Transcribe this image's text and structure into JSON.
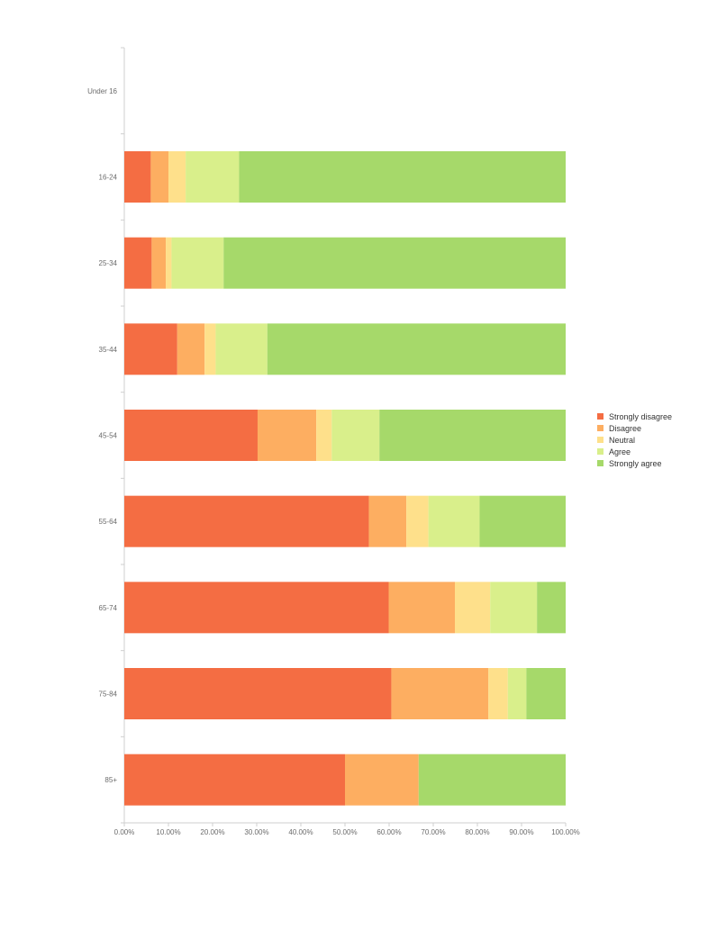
{
  "chart_data": {
    "type": "bar",
    "orientation": "horizontal",
    "stacked": true,
    "categories": [
      "Under 16",
      "16-24",
      "25-34",
      "35-44",
      "45-54",
      "55-64",
      "65-74",
      "75-84",
      "85+"
    ],
    "series": [
      {
        "name": "Strongly disagree",
        "color": "#f46d43",
        "values": [
          0,
          6,
          6.2,
          12,
          30.2,
          55.4,
          59.9,
          60.5,
          50
        ]
      },
      {
        "name": "Disagree",
        "color": "#fdae61",
        "values": [
          0,
          4,
          3.2,
          6.2,
          13.3,
          8.5,
          15,
          22,
          16.7
        ]
      },
      {
        "name": "Neutral",
        "color": "#fee08b",
        "values": [
          0,
          3.9,
          1.3,
          2.5,
          3.5,
          5,
          8,
          4.4,
          0
        ]
      },
      {
        "name": "Agree",
        "color": "#d9ef8b",
        "values": [
          0,
          12.1,
          11.8,
          11.7,
          10.8,
          11.6,
          10.6,
          4.2,
          0
        ]
      },
      {
        "name": "Strongly agree",
        "color": "#a6d96a",
        "values": [
          0,
          74,
          77.5,
          67.6,
          42.2,
          19.5,
          6.5,
          8.9,
          33.3
        ]
      }
    ],
    "x_ticks": [
      "0.00%",
      "10.00%",
      "20.00%",
      "30.00%",
      "40.00%",
      "50.00%",
      "60.00%",
      "70.00%",
      "80.00%",
      "90.00%",
      "100.00%"
    ],
    "xlim": [
      0,
      100
    ],
    "xlabel": "",
    "ylabel": "",
    "title": "",
    "grid": false,
    "legend_position": "right"
  }
}
